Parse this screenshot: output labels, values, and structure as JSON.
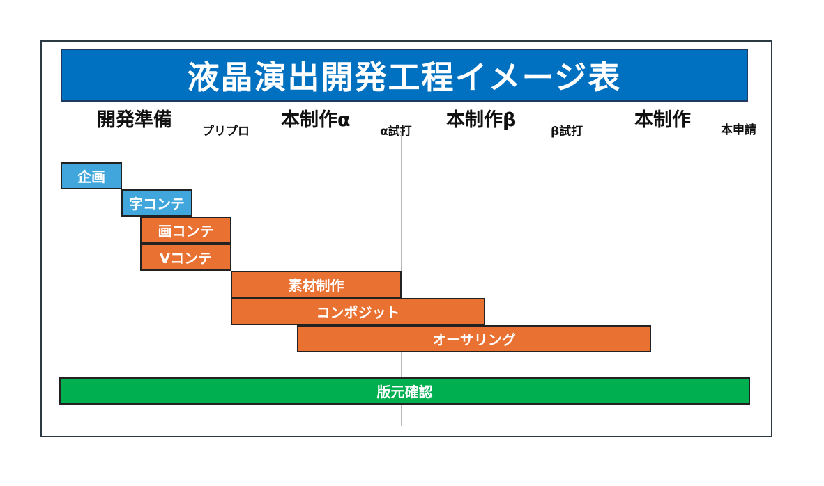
{
  "title": "液晶演出開発工程イメージ表",
  "phases": {
    "p1": "開発準備",
    "p2": "本制作α",
    "p3": "本制作β",
    "p4": "本制作"
  },
  "milestones": {
    "m1": "プリプロ",
    "m2": "α試打",
    "m3": "β試打",
    "m4": "本申請"
  },
  "tasks": {
    "t1": "企画",
    "t2": "字コンテ",
    "t3": "画コンテ",
    "t4": "Vコンテ",
    "t5": "素材制作",
    "t6": "コンポジット",
    "t7": "オーサリング",
    "t8": "版元確認"
  },
  "colors": {
    "title_bg": "#0070c0",
    "planning": "#41a6dc",
    "production": "#e97132",
    "review": "#00b050"
  }
}
